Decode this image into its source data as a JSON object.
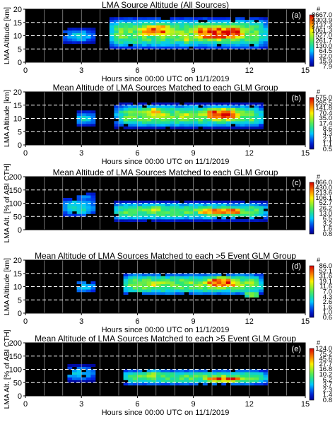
{
  "chart_data": [
    {
      "type": "heatmap",
      "title": "LMA Source Altitude (All Sources)",
      "panel_label": "(a)",
      "xlabel": "Hours since 00:00 UTC on 11/1/2019",
      "ylabel": "LMA Altitude [km]",
      "xlim": [
        0,
        15
      ],
      "ylim": [
        0,
        20
      ],
      "xticks": [
        "0",
        "3",
        "6",
        "9",
        "12",
        "15"
      ],
      "yticks": [
        "0",
        "5",
        "10",
        "15",
        "20"
      ],
      "colorbar_unit": "#",
      "colorbar_labels": [
        "8667.0",
        "4303.9",
        "2137.3",
        "1061.3",
        "527.0",
        "261.7",
        "130.0",
        "64.5",
        "32.0",
        "15.9",
        "7.9"
      ],
      "dashed_lines": [
        5,
        10,
        15
      ],
      "blobs": [
        {
          "x0": 2.2,
          "x1": 3.5,
          "y": 10,
          "hw": 3.0,
          "pk": 0.35
        },
        {
          "x0": 4.6,
          "x1": 12.8,
          "y": 11,
          "hw": 6.5,
          "pk": 0.55
        },
        {
          "x0": 6.0,
          "x1": 7.8,
          "y": 12,
          "hw": 3.5,
          "pk": 0.88
        },
        {
          "x0": 9.0,
          "x1": 11.8,
          "y": 11,
          "hw": 4.0,
          "pk": 0.97
        },
        {
          "x0": 8.2,
          "x1": 9.2,
          "y": 9,
          "hw": 2.5,
          "pk": 0.7
        }
      ]
    },
    {
      "type": "heatmap",
      "title": "Mean Altitude of LMA Sources Matched to each GLM Group",
      "panel_label": "(b)",
      "xlabel": "Hours since 00:00 UTC on 11/1/2019",
      "ylabel": "LMA Altitude [km]",
      "xlim": [
        0,
        15
      ],
      "ylim": [
        0,
        20
      ],
      "xticks": [
        "0",
        "3",
        "6",
        "9",
        "12",
        "15"
      ],
      "yticks": [
        "0",
        "5",
        "10",
        "15",
        "20"
      ],
      "colorbar_unit": "#",
      "colorbar_labels": [
        "575.0",
        "285.5",
        "141.8",
        "70.4",
        "35.0",
        "17.4",
        "8.6",
        "4.3",
        "2.1",
        "1.1",
        "0.5"
      ],
      "dashed_lines": [
        5,
        10,
        15
      ],
      "blobs": [
        {
          "x0": 2.8,
          "x1": 3.6,
          "y": 10,
          "hw": 3.0,
          "pk": 0.4
        },
        {
          "x0": 5.0,
          "x1": 12.6,
          "y": 11,
          "hw": 4.8,
          "pk": 0.55
        },
        {
          "x0": 6.3,
          "x1": 7.5,
          "y": 12,
          "hw": 3.0,
          "pk": 0.85
        },
        {
          "x0": 9.6,
          "x1": 11.4,
          "y": 11.5,
          "hw": 3.5,
          "pk": 0.97
        },
        {
          "x0": 8.0,
          "x1": 9.0,
          "y": 11,
          "hw": 2.5,
          "pk": 0.7
        }
      ]
    },
    {
      "type": "heatmap",
      "title": "Mean Altitude of LMA Sources Matched to each GLM Group",
      "panel_label": "(c)",
      "xlabel": "",
      "ylabel": "LMA Alt. [% of ABI CTH]",
      "xlim": [
        0,
        15
      ],
      "ylim": [
        0,
        200
      ],
      "xticks": [],
      "yticks": [
        "0",
        "50",
        "100",
        "150",
        "200"
      ],
      "colorbar_unit": "#",
      "colorbar_labels": [
        "866.0",
        "430.0",
        "213.6",
        "106.1",
        "52.7",
        "26.2",
        "13.0",
        "6.5",
        "3.2",
        "1.6",
        "0.8"
      ],
      "dashed_lines": [
        50,
        100,
        150
      ],
      "blobs": [
        {
          "x0": 2.2,
          "x1": 3.5,
          "y": 85,
          "hw": 40,
          "pk": 0.4
        },
        {
          "x0": 4.8,
          "x1": 12.8,
          "y": 70,
          "hw": 38,
          "pk": 0.5
        },
        {
          "x0": 6.4,
          "x1": 7.4,
          "y": 78,
          "hw": 22,
          "pk": 0.72
        },
        {
          "x0": 9.3,
          "x1": 11.6,
          "y": 68,
          "hw": 18,
          "pk": 0.95
        },
        {
          "x0": 3.0,
          "x1": 3.5,
          "y": 122,
          "hw": 18,
          "pk": 0.3
        }
      ]
    },
    {
      "type": "heatmap",
      "title": "Mean Altitude of LMA Sources Matched to each >5 Event GLM Group",
      "panel_label": "(d)",
      "xlabel": "Hours since 00:00 UTC on 11/1/2019",
      "ylabel": "LMA Altitude [km]",
      "xlim": [
        0,
        15
      ],
      "ylim": [
        0,
        20
      ],
      "xticks": [
        "0",
        "3",
        "6",
        "9",
        "12",
        "15"
      ],
      "yticks": [
        "0",
        "5",
        "10",
        "15",
        "20"
      ],
      "colorbar_unit": "#",
      "colorbar_labels": [
        "86.0",
        "52.1",
        "31.6",
        "19.1",
        "11.6",
        "7.0",
        "4.3",
        "2.6",
        "1.6",
        "1.0",
        "0.6"
      ],
      "dashed_lines": [
        5,
        10,
        15
      ],
      "blobs": [
        {
          "x0": 2.8,
          "x1": 3.6,
          "y": 10,
          "hw": 2.5,
          "pk": 0.4
        },
        {
          "x0": 5.3,
          "x1": 12.6,
          "y": 11,
          "hw": 4.5,
          "pk": 0.55
        },
        {
          "x0": 9.6,
          "x1": 11.4,
          "y": 11.5,
          "hw": 3.0,
          "pk": 0.95
        },
        {
          "x0": 6.4,
          "x1": 7.6,
          "y": 11,
          "hw": 2.5,
          "pk": 0.7
        },
        {
          "x0": 12.0,
          "x1": 12.3,
          "y": 7,
          "hw": 1.5,
          "pk": 0.9
        }
      ]
    },
    {
      "type": "heatmap",
      "title": "Mean Altitude of LMA Sources Matched to each >5 Event GLM Group",
      "panel_label": "(e)",
      "xlabel": "Hours since 00:00 UTC on 11/1/2019",
      "ylabel": "LMA Alt. [% of ABI CTH]",
      "xlim": [
        0,
        15
      ],
      "ylim": [
        0,
        200
      ],
      "xticks": [
        "0",
        "3",
        "6",
        "9",
        "12",
        "15"
      ],
      "yticks": [
        "0",
        "50",
        "100",
        "150",
        "200"
      ],
      "colorbar_unit": "#",
      "colorbar_labels": [
        "124.0",
        "75.2",
        "45.6",
        "27.7",
        "16.8",
        "10.2",
        "6.2",
        "3.7",
        "2.3",
        "1.4",
        "0.8"
      ],
      "dashed_lines": [
        50,
        100,
        150
      ],
      "blobs": [
        {
          "x0": 2.3,
          "x1": 3.5,
          "y": 85,
          "hw": 32,
          "pk": 0.35
        },
        {
          "x0": 5.3,
          "x1": 12.8,
          "y": 70,
          "hw": 32,
          "pk": 0.5
        },
        {
          "x0": 9.6,
          "x1": 11.6,
          "y": 65,
          "hw": 16,
          "pk": 0.95
        },
        {
          "x0": 6.3,
          "x1": 7.4,
          "y": 80,
          "hw": 20,
          "pk": 0.65
        }
      ]
    }
  ]
}
